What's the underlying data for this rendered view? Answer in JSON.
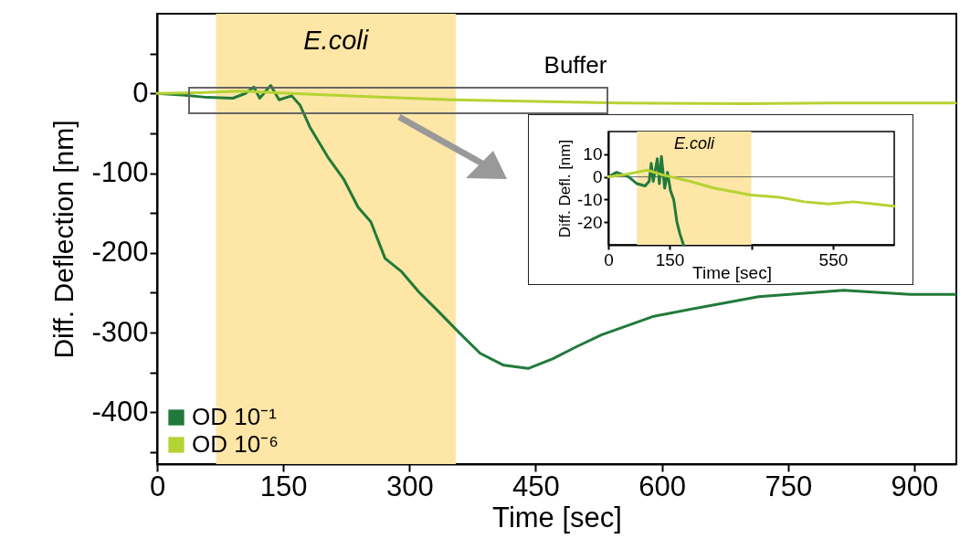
{
  "chart_data": [
    {
      "type": "line",
      "xlabel": "Time [sec]",
      "ylabel": "Diff. Deflection [nm]",
      "xlim": [
        0,
        950
      ],
      "ylim": [
        -465,
        100
      ],
      "xticks": [
        0,
        150,
        300,
        450,
        600,
        750,
        900
      ],
      "yticks": [
        {
          "value": 50,
          "label": null
        },
        0,
        {
          "value": -50,
          "label": null
        },
        -100,
        {
          "value": -150,
          "label": null
        },
        -200,
        {
          "value": -250,
          "label": null
        },
        -300,
        {
          "value": -350,
          "label": null
        },
        -400,
        {
          "value": -450,
          "label": null
        }
      ],
      "legend": "bottom left",
      "grid": false,
      "line_style": "solid",
      "marker": "none",
      "bands": [
        {
          "axis": "x",
          "from": 70,
          "to": 355,
          "label": "E.coli",
          "color": "#fde6a6"
        }
      ],
      "annotations": [
        "Buffer"
      ],
      "series": [
        {
          "name": "OD 10⁻¹",
          "color": "#217a3a",
          "x": [
            0,
            30,
            60,
            90,
            105,
            115,
            122,
            135,
            145,
            160,
            170,
            182,
            203,
            222,
            239,
            254,
            271,
            290,
            311,
            333,
            358,
            384,
            412,
            441,
            470,
            498,
            528,
            589,
            643,
            715,
            816,
            895,
            949
          ],
          "values": [
            0,
            -2,
            -5,
            -6,
            0,
            8,
            -6,
            10,
            -8,
            -3,
            -15,
            -43,
            -80,
            -108,
            -143,
            -161,
            -207,
            -223,
            -249,
            -272,
            -299,
            -326,
            -341,
            -345,
            -333,
            -318,
            -303,
            -280,
            -269,
            -255,
            -247,
            -252,
            -252
          ]
        },
        {
          "name": "OD 10⁻⁶",
          "color": "#b5d334",
          "x": [
            0,
            50,
            100,
            160,
            250,
            350,
            450,
            550,
            700,
            800,
            949
          ],
          "values": [
            0,
            1,
            3,
            0,
            -4,
            -8,
            -10,
            -12,
            -13,
            -12,
            -12
          ]
        }
      ]
    },
    {
      "type": "line",
      "xlabel": "Time [sec]",
      "ylabel": "Diff. Defl. [nm]",
      "xlim": [
        0,
        700
      ],
      "ylim": [
        -30,
        20
      ],
      "xticks": [
        0,
        150,
        {
          "value": 350,
          "label": null
        },
        550
      ],
      "yticks": [
        10,
        0,
        -10,
        -20
      ],
      "legend": false,
      "grid": false,
      "line_style": "solid",
      "marker": "none",
      "bands": [
        {
          "axis": "x",
          "from": 70,
          "to": 350,
          "label": "E.coli",
          "color": "#fde6a6"
        }
      ],
      "ref_lines": [
        {
          "axis": "y",
          "value": 0,
          "color": "#666666"
        }
      ],
      "series": [
        {
          "color": "#217a3a",
          "x": [
            0,
            20,
            50,
            70,
            90,
            100,
            105,
            110,
            120,
            125,
            130,
            138,
            145,
            152,
            160,
            168,
            175,
            184
          ],
          "values": [
            0,
            2,
            0,
            -3,
            -4,
            -2,
            6,
            -2,
            8,
            -3,
            9,
            -5,
            2,
            -6,
            -10,
            -20,
            -25,
            -30
          ]
        },
        {
          "color": "#b5d334",
          "x": [
            0,
            40,
            95,
            130,
            200,
            260,
            350,
            420,
            480,
            539,
            600,
            650,
            700
          ],
          "values": [
            0,
            1,
            3,
            1,
            -2,
            -5,
            -8,
            -9,
            -11,
            -12,
            -11,
            -12,
            -13
          ]
        }
      ]
    }
  ]
}
